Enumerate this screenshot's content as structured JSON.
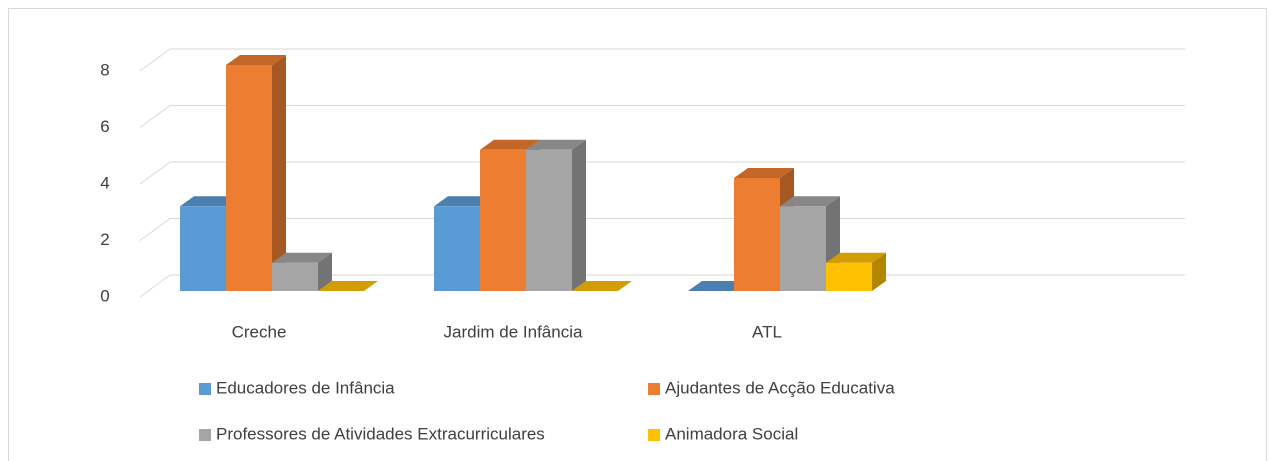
{
  "chart_data": {
    "type": "bar3d",
    "categories": [
      "Creche",
      "Jardim de Infância",
      "ATL"
    ],
    "series": [
      {
        "name": "Educadores de Infância",
        "color": "#5b9bd5",
        "values": [
          3,
          3,
          0
        ]
      },
      {
        "name": "Ajudantes de Acção Educativa",
        "color": "#ed7d31",
        "values": [
          8,
          5,
          4
        ]
      },
      {
        "name": "Professores de Atividades Extracurriculares",
        "color": "#a5a5a5",
        "values": [
          1,
          5,
          3
        ]
      },
      {
        "name": "Animadora Social",
        "color": "#ffc000",
        "values": [
          0,
          0,
          1
        ]
      }
    ],
    "ylim": [
      0,
      8
    ],
    "yticks": [
      0,
      2,
      4,
      6,
      8
    ],
    "grid": true,
    "legend": "bottom"
  }
}
